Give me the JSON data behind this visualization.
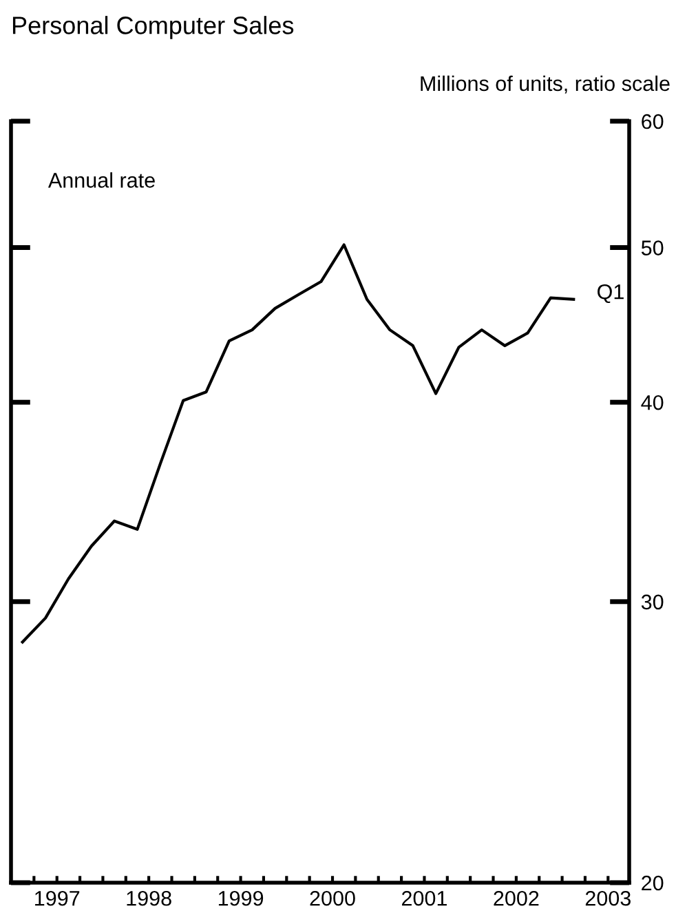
{
  "chart_data": {
    "type": "line",
    "title": "Personal Computer Sales",
    "ylabel": "Millions of units, ratio scale",
    "annotations": [
      "Annual rate",
      {
        "text": "Q1",
        "x": 2003.125,
        "y": 46.4
      }
    ],
    "x": [
      1997.125,
      1997.375,
      1997.625,
      1997.875,
      1998.125,
      1998.375,
      1998.625,
      1998.875,
      1999.125,
      1999.375,
      1999.625,
      1999.875,
      2000.125,
      2000.375,
      2000.625,
      2000.875,
      2001.125,
      2001.375,
      2001.625,
      2001.875,
      2002.125,
      2002.375,
      2002.625,
      2002.875,
      2003.125
    ],
    "series": [
      {
        "color": "#000000",
        "values": [
          28.3,
          29.3,
          31.0,
          32.5,
          33.7,
          33.3,
          36.6,
          40.1,
          40.6,
          43.7,
          44.4,
          45.8,
          46.7,
          47.6,
          50.2,
          46.4,
          44.4,
          43.4,
          40.5,
          43.3,
          44.4,
          43.4,
          44.2,
          46.5,
          46.4
        ]
      }
    ],
    "log": true,
    "ylim": [
      20,
      60
    ],
    "yticks": [
      20,
      30,
      40,
      50,
      60
    ],
    "xlim": [
      1997,
      2003.73
    ],
    "xticks": [
      {
        "value": 1997.25,
        "label": null
      },
      {
        "value": 1997.5,
        "label": "1997"
      },
      {
        "value": 1997.75,
        "label": null
      },
      {
        "value": 1998,
        "label": null
      },
      {
        "value": 1998.25,
        "label": null
      },
      {
        "value": 1998.5,
        "label": "1998"
      },
      {
        "value": 1998.75,
        "label": null
      },
      {
        "value": 1999,
        "label": null
      },
      {
        "value": 1999.25,
        "label": null
      },
      {
        "value": 1999.5,
        "label": "1999"
      },
      {
        "value": 1999.75,
        "label": null
      },
      {
        "value": 2000,
        "label": null
      },
      {
        "value": 2000.25,
        "label": null
      },
      {
        "value": 2000.5,
        "label": "2000"
      },
      {
        "value": 2000.75,
        "label": null
      },
      {
        "value": 2001,
        "label": null
      },
      {
        "value": 2001.25,
        "label": null
      },
      {
        "value": 2001.5,
        "label": "2001"
      },
      {
        "value": 2001.75,
        "label": null
      },
      {
        "value": 2002,
        "label": null
      },
      {
        "value": 2002.25,
        "label": null
      },
      {
        "value": 2002.5,
        "label": "2002"
      },
      {
        "value": 2002.75,
        "label": null
      },
      {
        "value": 2003,
        "label": null
      },
      {
        "value": 2003.25,
        "label": null
      },
      {
        "value": 2003.5,
        "label": "2003"
      }
    ],
    "grid": false,
    "legend": false,
    "line_style": "solid",
    "marker": "none"
  }
}
